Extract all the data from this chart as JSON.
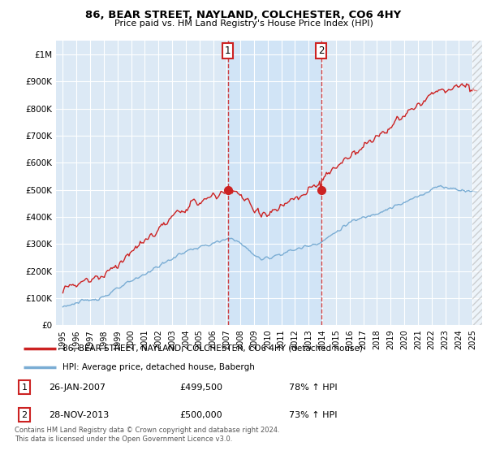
{
  "title": "86, BEAR STREET, NAYLAND, COLCHESTER, CO6 4HY",
  "subtitle": "Price paid vs. HM Land Registry's House Price Index (HPI)",
  "legend_line1": "86, BEAR STREET, NAYLAND, COLCHESTER, CO6 4HY (detached house)",
  "legend_line2": "HPI: Average price, detached house, Babergh",
  "footnote": "Contains HM Land Registry data © Crown copyright and database right 2024.\nThis data is licensed under the Open Government Licence v3.0.",
  "sale1_date": "26-JAN-2007",
  "sale1_price": "£499,500",
  "sale1_hpi": "78% ↑ HPI",
  "sale2_date": "28-NOV-2013",
  "sale2_price": "£500,000",
  "sale2_hpi": "73% ↑ HPI",
  "hpi_color": "#7aadd4",
  "price_color": "#cc2222",
  "shade_color": "#d0e4f7",
  "background_color": "#dce9f5",
  "sale1_x": 2007.07,
  "sale2_x": 2013.91,
  "sale1_y": 499500,
  "sale2_y": 500000,
  "ylim": [
    0,
    1050000
  ],
  "xlim_start": 1994.5,
  "xlim_end": 2025.7
}
